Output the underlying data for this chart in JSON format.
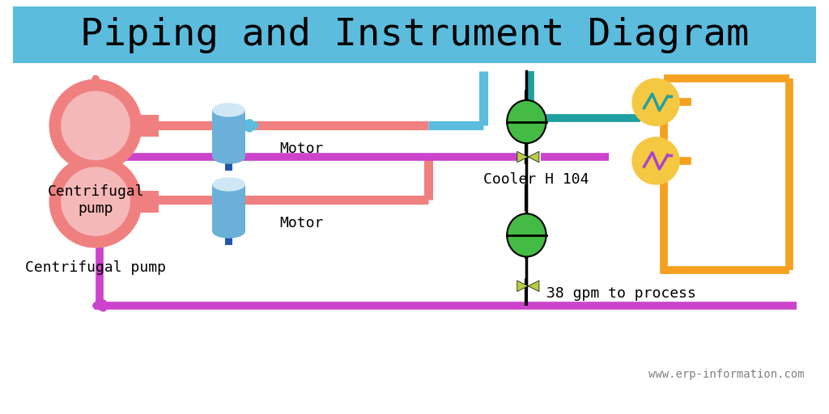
{
  "title": "Piping and Instrument Diagram",
  "title_bg": "#5bbcdd",
  "title_color": "black",
  "title_fontsize": 34,
  "bg_color": "white",
  "pump_color": "#f08080",
  "pump_inner_color": "#f5b8b8",
  "motor_body_color": "#6ab0d8",
  "motor_cap_color": "#d0e8f5",
  "motor_shaft_color": "#2255aa",
  "pipe_pink": "#f08080",
  "pipe_blue": "#5bbcdd",
  "pipe_purple": "#cc44cc",
  "pipe_teal": "#20a0a0",
  "pipe_orange": "#f5a020",
  "valve_color": "#b8cc44",
  "ball_green": "#44bb44",
  "instrument_yellow": "#f5c842",
  "instrument_teal": "#20a0a0",
  "instrument_purple": "#aa44cc",
  "dashed_line_color": "black",
  "url_text": "www.erp-information.com",
  "cooler_text": "Cooler H 104",
  "process_text": "38 gpm to process",
  "motor_text": "Motor",
  "pump_text1": "Centrifugal\npump",
  "pump_text2": "Centrifugal pump"
}
